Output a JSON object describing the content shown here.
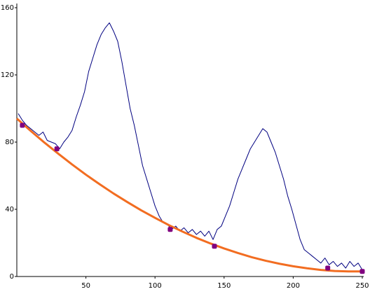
{
  "chart_data": {
    "type": "line",
    "xlim": [
      0,
      250
    ],
    "ylim": [
      0,
      162.5
    ],
    "xticks": [
      50,
      100,
      150,
      200,
      250
    ],
    "yticks": [
      0,
      40,
      80,
      120,
      160
    ],
    "series": [
      {
        "mode": "line",
        "color": "#000080",
        "x": [
          1,
          4,
          7,
          10,
          13,
          16,
          19,
          22,
          25,
          28,
          31,
          34,
          37,
          40,
          43,
          46,
          49,
          52,
          55,
          58,
          61,
          64,
          67,
          70,
          73,
          76,
          79,
          82,
          85,
          88,
          91,
          94,
          97,
          100,
          103,
          106,
          109,
          112,
          115,
          118,
          121,
          124,
          127,
          130,
          133,
          136,
          139,
          142,
          145,
          148,
          151,
          154,
          157,
          160,
          163,
          166,
          169,
          172,
          175,
          178,
          181,
          184,
          187,
          190,
          193,
          196,
          199,
          202,
          205,
          208,
          211,
          214,
          217,
          220,
          223,
          226,
          229,
          232,
          235,
          238,
          241,
          244,
          247,
          250
        ],
        "values": [
          97,
          93,
          90,
          88,
          86,
          84,
          86,
          81,
          80,
          79,
          76,
          80,
          83,
          87,
          95,
          102,
          110,
          122,
          130,
          138,
          144,
          148,
          151,
          146,
          140,
          128,
          114,
          100,
          90,
          78,
          66,
          58,
          50,
          42,
          36,
          32,
          31,
          28,
          30,
          27,
          29,
          26,
          28,
          25,
          27,
          24,
          27,
          22,
          28,
          30,
          36,
          42,
          50,
          58,
          64,
          70,
          76,
          80,
          84,
          88,
          86,
          80,
          74,
          66,
          58,
          48,
          40,
          31,
          22,
          16,
          14,
          12,
          10,
          8,
          11,
          7,
          9,
          6,
          8,
          5,
          9,
          6,
          8,
          4
        ]
      },
      {
        "mode": "line",
        "color": "#f26d21",
        "x": [
          0,
          10,
          20,
          30,
          40,
          50,
          60,
          70,
          80,
          90,
          100,
          110,
          120,
          130,
          140,
          150,
          160,
          170,
          180,
          190,
          200,
          210,
          220,
          230,
          240,
          250
        ],
        "values": [
          94,
          86.7,
          79.7,
          73.1,
          66.7,
          60.6,
          54.9,
          49.4,
          44.3,
          39.4,
          34.9,
          30.6,
          26.7,
          23,
          19.7,
          16.7,
          14,
          11.5,
          9.4,
          7.6,
          6.1,
          4.9,
          3.9,
          3.3,
          3,
          3
        ]
      },
      {
        "mode": "markers",
        "color": "#800080",
        "x": [
          4,
          29,
          111,
          143,
          225,
          250
        ],
        "values": [
          90,
          76,
          28,
          18,
          5,
          3
        ]
      }
    ]
  }
}
